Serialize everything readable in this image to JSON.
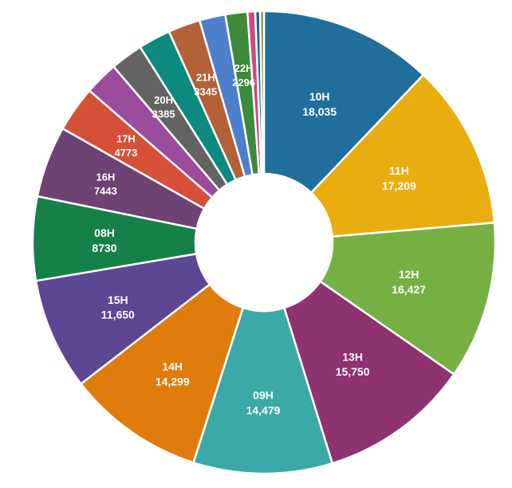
{
  "chart_data": {
    "type": "pie",
    "style": "donut",
    "title": "",
    "legend": "none",
    "slices": [
      {
        "label": "10H",
        "value": 18035,
        "display": "18,035",
        "color": "#1f6e9c",
        "labeled": true
      },
      {
        "label": "11H",
        "value": 17209,
        "display": "17,209",
        "color": "#e8ad0f",
        "labeled": true
      },
      {
        "label": "12H",
        "value": 16427,
        "display": "16,427",
        "color": "#76b043",
        "labeled": true
      },
      {
        "label": "13H",
        "value": 15750,
        "display": "15,750",
        "color": "#8f3270",
        "labeled": true
      },
      {
        "label": "09H",
        "value": 14479,
        "display": "14,479",
        "color": "#3aa9a7",
        "labeled": true
      },
      {
        "label": "14H",
        "value": 14299,
        "display": "14,299",
        "color": "#e07c0c",
        "labeled": true
      },
      {
        "label": "15H",
        "value": 11650,
        "display": "11,650",
        "color": "#5d4692",
        "labeled": true
      },
      {
        "label": "08H",
        "value": 8730,
        "display": "8730",
        "color": "#168049",
        "labeled": true
      },
      {
        "label": "16H",
        "value": 7443,
        "display": "7443",
        "color": "#6e4273",
        "labeled": true
      },
      {
        "label": "17H",
        "value": 4773,
        "display": "4773",
        "color": "#d65038",
        "labeled": true
      },
      {
        "label": "",
        "value": 3500,
        "display": "",
        "color": "#9b4b9c",
        "labeled": false
      },
      {
        "label": "20H",
        "value": 3385,
        "display": "3385",
        "color": "#636363",
        "labeled": true
      },
      {
        "label": "",
        "value": 3360,
        "display": "",
        "color": "#0d8a80",
        "labeled": false
      },
      {
        "label": "21H",
        "value": 3345,
        "display": "3345",
        "color": "#b36137",
        "labeled": true
      },
      {
        "label": "",
        "value": 2700,
        "display": "",
        "color": "#4e7fcd",
        "labeled": false
      },
      {
        "label": "22H",
        "value": 2296,
        "display": "2296",
        "color": "#3c8a3a",
        "labeled": true
      },
      {
        "label": "",
        "value": 800,
        "display": "",
        "color": "#cf4a81",
        "labeled": false
      },
      {
        "label": "",
        "value": 500,
        "display": "",
        "color": "#166c93",
        "labeled": false
      },
      {
        "label": "",
        "value": 400,
        "display": "",
        "color": "#8f8a2e",
        "labeled": false
      }
    ]
  }
}
